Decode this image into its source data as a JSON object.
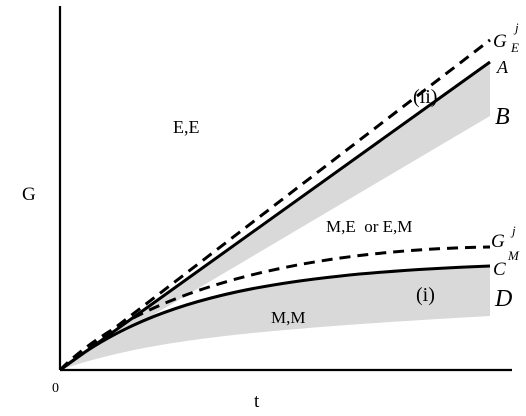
{
  "axes": {
    "x_label": "t",
    "y_label": "G",
    "origin_label": "0"
  },
  "regions": {
    "ee": "E,E",
    "me_em": "M,E  or E,M",
    "mm": "M,M"
  },
  "bands": {
    "upper": "(ii)",
    "lower": "(i)"
  },
  "curve_labels": {
    "ge_main": "G",
    "ge_sup": "j",
    "ge_sub": "E",
    "a": "A",
    "b": "B",
    "gm_main": "G",
    "gm_sup": "j",
    "c_main": "C",
    "c_sup": "M",
    "d": "D"
  },
  "colors": {
    "band_fill": "#d9d9d9",
    "line": "#000000"
  }
}
